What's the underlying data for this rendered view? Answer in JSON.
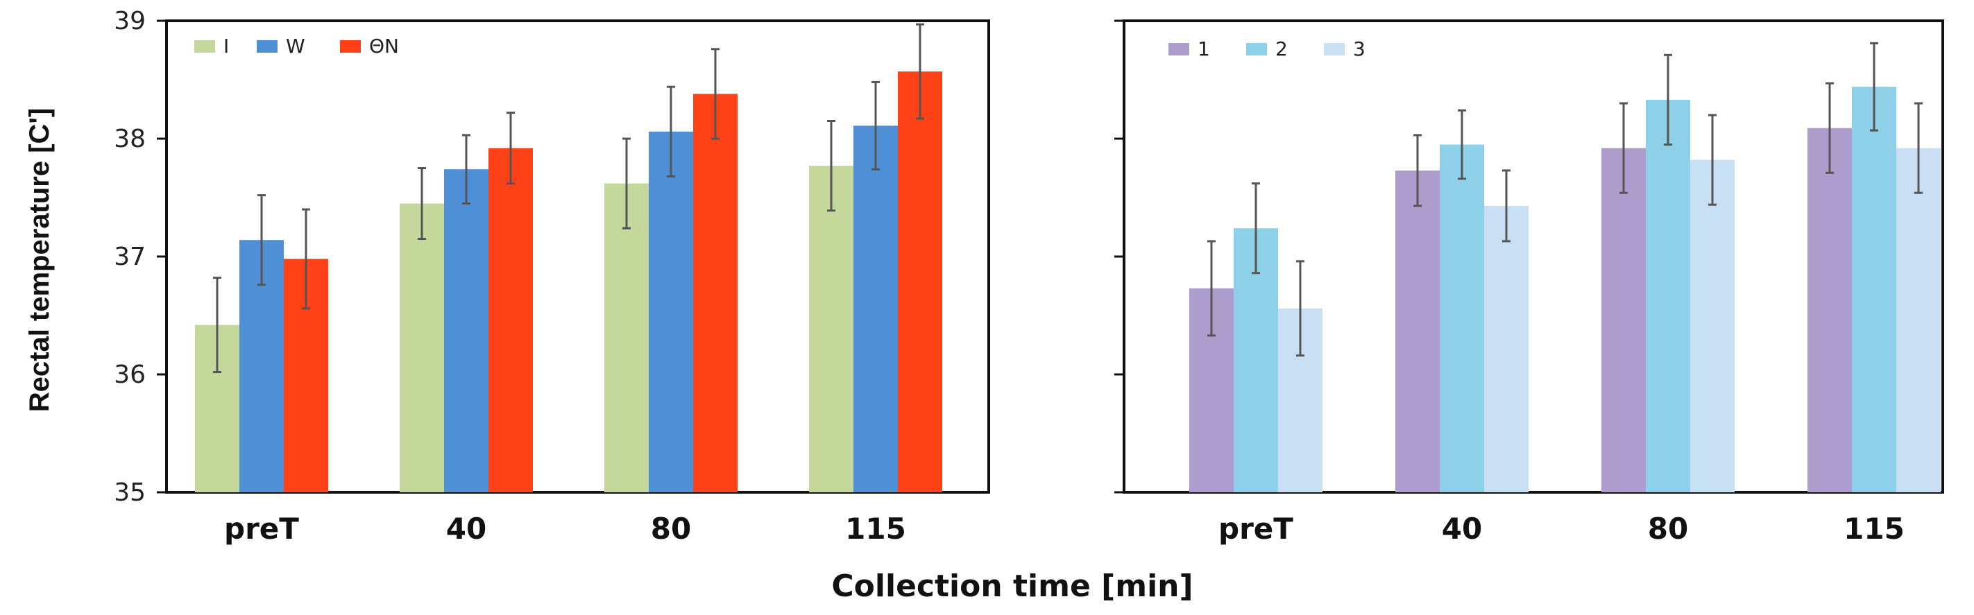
{
  "chart_data": [
    {
      "type": "bar",
      "panel": "left",
      "categories": [
        "preT",
        "40",
        "80",
        "115"
      ],
      "series": [
        {
          "name": "I",
          "color": "#c5d89b",
          "values": [
            36.42,
            37.45,
            37.62,
            37.77
          ],
          "errors": [
            0.4,
            0.3,
            0.38,
            0.38
          ]
        },
        {
          "name": "W",
          "color": "#4f8fd6",
          "values": [
            37.14,
            37.74,
            38.06,
            38.11
          ],
          "errors": [
            0.38,
            0.29,
            0.38,
            0.37
          ]
        },
        {
          "name": "ΘN",
          "color": "#ff4118",
          "values": [
            36.98,
            37.92,
            38.38,
            38.57
          ],
          "errors": [
            0.42,
            0.3,
            0.38,
            0.4
          ]
        }
      ],
      "ylim": [
        35,
        39
      ],
      "yticks": [
        "35",
        "36",
        "37",
        "38",
        "39"
      ],
      "ylabel": "Rectal temperature [C']",
      "legend": "top-left"
    },
    {
      "type": "bar",
      "panel": "right",
      "categories": [
        "preT",
        "40",
        "80",
        "115"
      ],
      "series": [
        {
          "name": "1",
          "color": "#ad9dcc",
          "values": [
            36.73,
            37.73,
            37.92,
            38.09
          ],
          "errors": [
            0.4,
            0.3,
            0.38,
            0.38
          ]
        },
        {
          "name": "2",
          "color": "#8ed0e8",
          "values": [
            37.24,
            37.95,
            38.33,
            38.44
          ],
          "errors": [
            0.38,
            0.29,
            0.38,
            0.37
          ]
        },
        {
          "name": "3",
          "color": "#c9dff4",
          "values": [
            36.56,
            37.43,
            37.82,
            37.92
          ],
          "errors": [
            0.4,
            0.3,
            0.38,
            0.38
          ]
        }
      ],
      "ylim": [
        35,
        39
      ],
      "legend": "top-left"
    }
  ],
  "xlabel": "Collection time [min]"
}
